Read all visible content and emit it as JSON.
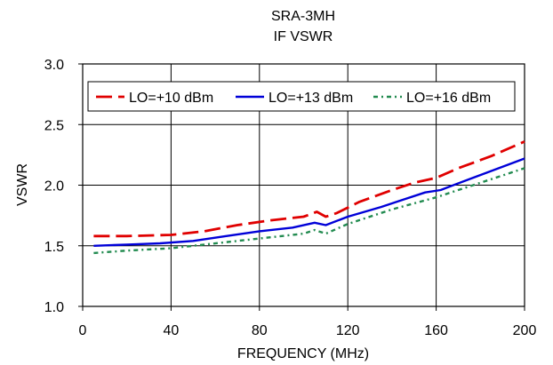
{
  "chart_data": {
    "type": "line",
    "title": "SRA-3MH",
    "subtitle": "IF VSWR",
    "xlabel": "FREQUENCY (MHz)",
    "ylabel": "VSWR",
    "xlim": [
      0,
      200
    ],
    "ylim": [
      1.0,
      3.0
    ],
    "xticks": [
      0,
      40,
      80,
      120,
      160,
      200
    ],
    "yticks": [
      1.0,
      1.5,
      2.0,
      2.5,
      3.0
    ],
    "xtick_labels": [
      "0",
      "40",
      "80",
      "120",
      "160",
      "200"
    ],
    "ytick_labels": [
      "1.0",
      "1.5",
      "2.0",
      "2.5",
      "3.0"
    ],
    "grid": true,
    "legend_position": "top",
    "series": [
      {
        "name": "LO=+10 dBm",
        "color": "#e00000",
        "dash": "dashed",
        "points": [
          [
            5,
            1.58
          ],
          [
            20,
            1.58
          ],
          [
            40,
            1.59
          ],
          [
            55,
            1.62
          ],
          [
            70,
            1.67
          ],
          [
            85,
            1.71
          ],
          [
            100,
            1.74
          ],
          [
            106,
            1.78
          ],
          [
            110,
            1.74
          ],
          [
            115,
            1.77
          ],
          [
            125,
            1.86
          ],
          [
            140,
            1.96
          ],
          [
            150,
            2.02
          ],
          [
            160,
            2.06
          ],
          [
            170,
            2.14
          ],
          [
            185,
            2.24
          ],
          [
            200,
            2.36
          ]
        ]
      },
      {
        "name": "LO=+13 dBm",
        "color": "#0000d8",
        "dash": "solid",
        "points": [
          [
            5,
            1.5
          ],
          [
            20,
            1.51
          ],
          [
            35,
            1.52
          ],
          [
            50,
            1.54
          ],
          [
            65,
            1.58
          ],
          [
            80,
            1.62
          ],
          [
            95,
            1.65
          ],
          [
            105,
            1.69
          ],
          [
            110,
            1.67
          ],
          [
            120,
            1.74
          ],
          [
            135,
            1.82
          ],
          [
            145,
            1.88
          ],
          [
            155,
            1.94
          ],
          [
            162,
            1.96
          ],
          [
            175,
            2.05
          ],
          [
            200,
            2.22
          ]
        ]
      },
      {
        "name": "LO=+16 dBm",
        "color": "#228b50",
        "dash": "dotted",
        "points": [
          [
            5,
            1.44
          ],
          [
            20,
            1.46
          ],
          [
            40,
            1.48
          ],
          [
            55,
            1.51
          ],
          [
            70,
            1.54
          ],
          [
            85,
            1.57
          ],
          [
            100,
            1.6
          ],
          [
            105,
            1.63
          ],
          [
            110,
            1.6
          ],
          [
            120,
            1.68
          ],
          [
            140,
            1.8
          ],
          [
            160,
            1.9
          ],
          [
            180,
            2.02
          ],
          [
            200,
            2.14
          ]
        ]
      }
    ]
  }
}
